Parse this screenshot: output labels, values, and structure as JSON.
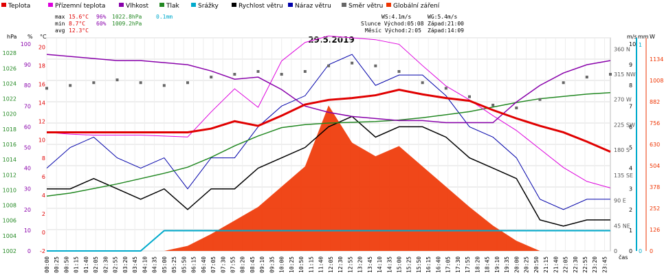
{
  "chart_data": {
    "type": "line",
    "title": "29.5.2019",
    "xlabel": "čas",
    "x_times": [
      "00:00",
      "00:25",
      "00:50",
      "01:15",
      "01:40",
      "02:05",
      "02:30",
      "02:55",
      "03:20",
      "03:45",
      "04:10",
      "04:35",
      "05:00",
      "05:25",
      "05:50",
      "06:15",
      "06:40",
      "07:05",
      "07:30",
      "07:55",
      "08:20",
      "08:45",
      "09:10",
      "09:35",
      "10:00",
      "10:25",
      "10:50",
      "11:15",
      "11:40",
      "12:05",
      "12:30",
      "12:55",
      "13:20",
      "13:45",
      "14:10",
      "14:35",
      "15:00",
      "15:25",
      "15:50",
      "16:15",
      "16:40",
      "17:05",
      "17:30",
      "17:55",
      "18:20",
      "18:45",
      "19:10",
      "19:35",
      "20:00",
      "20:25",
      "20:50",
      "21:15",
      "21:40",
      "22:05",
      "22:30",
      "22:55",
      "23:20",
      "23:45"
    ],
    "legend": [
      {
        "name": "Teplota",
        "color": "#e00000"
      },
      {
        "name": "Přízemní teplota",
        "color": "#dd00dd"
      },
      {
        "name": "Vlhkost",
        "color": "#8800aa"
      },
      {
        "name": "Tlak",
        "color": "#228822"
      },
      {
        "name": "Srážky",
        "color": "#00aacc"
      },
      {
        "name": "Rychlost větru",
        "color": "#000000"
      },
      {
        "name": "Náraz větru",
        "color": "#0000aa"
      },
      {
        "name": "Směr větru",
        "color": "#666666"
      },
      {
        "name": "Globální záření",
        "color": "#ee3300"
      }
    ],
    "stats": {
      "max": {
        "label": "max",
        "temp": "15.6°C",
        "hum": "96%",
        "press": "1022.8hPa",
        "rain": "0.1mm"
      },
      "min": {
        "label": "min",
        "temp": "8.7°C",
        "hum": "60%",
        "press": "1009.2hPa"
      },
      "avg": {
        "label": "avg",
        "temp": "12.3°C"
      }
    },
    "info": {
      "ws": "WS:4.1m/s",
      "wg": "WG:5.4m/s",
      "sun": "Slunce Východ:05:08",
      "sun_set": "Západ:21:00",
      "moon": "Měsíc Východ:2:05",
      "moon_set": "Západ:14:09"
    },
    "axes": {
      "hpa": {
        "unit": "hPa",
        "ticks": [
          1002,
          1004,
          1006,
          1008,
          1010,
          1012,
          1014,
          1016,
          1018,
          1020,
          1022,
          1024,
          1026,
          1028
        ]
      },
      "pct": {
        "unit": "%",
        "ticks": [
          0,
          10,
          20,
          30,
          40,
          50,
          60,
          70,
          80,
          90,
          100
        ]
      },
      "degc": {
        "unit": "°C",
        "ticks": [
          -2,
          0,
          2,
          4,
          6,
          8,
          10,
          12,
          14,
          16,
          18,
          20
        ]
      },
      "dir": {
        "unit": "",
        "ticks": [
          "0",
          "45 NE",
          "90 E",
          "135 SE",
          "180 S",
          "225 SW",
          "270 W",
          "315 NW",
          "360 N"
        ]
      },
      "ms": {
        "unit": "m/s",
        "ticks": [
          0,
          1,
          2,
          3,
          4,
          5,
          6,
          7,
          8,
          9,
          10
        ]
      },
      "mm": {
        "unit": "mm",
        "ticks": [
          0,
          1
        ]
      },
      "w": {
        "unit": "W",
        "ticks": [
          0,
          126,
          252,
          378,
          504,
          630,
          756,
          882,
          1008,
          1134
        ]
      }
    },
    "series_hourly": {
      "hours": [
        0,
        1,
        2,
        3,
        4,
        5,
        6,
        7,
        8,
        9,
        10,
        11,
        12,
        13,
        14,
        15,
        16,
        17,
        18,
        19,
        20,
        21,
        22,
        23,
        24
      ],
      "teplota_c": [
        10.8,
        10.8,
        10.8,
        10.8,
        10.8,
        10.8,
        10.8,
        11.2,
        12.0,
        11.5,
        12.6,
        13.8,
        14.3,
        14.5,
        14.8,
        15.4,
        14.9,
        14.5,
        14.2,
        13.2,
        12.3,
        11.5,
        10.8,
        9.8,
        8.7
      ],
      "prizemni_c": [
        10.8,
        10.6,
        10.5,
        10.5,
        10.5,
        10.4,
        10.3,
        13.0,
        15.5,
        13.5,
        18.5,
        20.5,
        21.2,
        21.0,
        20.8,
        20.3,
        18.0,
        15.8,
        14.3,
        12.6,
        11.0,
        9.0,
        7.0,
        5.5,
        4.8
      ],
      "vlhkost_pct": [
        95,
        94,
        93,
        92,
        92,
        91,
        90,
        87,
        83,
        84,
        78,
        70,
        67,
        65,
        64,
        63,
        63,
        62,
        62,
        62,
        72,
        80,
        86,
        90,
        92
      ],
      "tlak_hpa": [
        1009.2,
        1009.6,
        1010.2,
        1010.8,
        1011.5,
        1012.2,
        1013.0,
        1014.3,
        1015.8,
        1017.1,
        1018.2,
        1018.6,
        1018.8,
        1018.9,
        1019.0,
        1019.2,
        1019.5,
        1019.9,
        1020.3,
        1020.9,
        1021.5,
        1022.0,
        1022.3,
        1022.6,
        1022.8
      ],
      "smer_deg": [
        290,
        295,
        300,
        305,
        300,
        295,
        300,
        310,
        315,
        320,
        315,
        320,
        330,
        335,
        330,
        320,
        300,
        290,
        275,
        260,
        255,
        270,
        300,
        310,
        315
      ],
      "rychlost_ms": [
        3,
        3,
        3.5,
        3,
        2.5,
        3,
        2,
        3,
        3,
        4,
        4.5,
        5,
        6,
        6.5,
        5.5,
        6,
        6,
        5.5,
        4.5,
        4,
        3.5,
        1.5,
        1.2,
        1.5,
        1.5
      ],
      "naraz_ms": [
        4,
        5,
        5.5,
        4.5,
        4,
        4.5,
        3,
        4.5,
        4.5,
        6,
        7,
        7.5,
        9,
        9.5,
        8,
        8.5,
        8.5,
        7.5,
        6,
        5.5,
        4.5,
        2.5,
        2,
        2.5,
        2.5
      ],
      "zareni_w": [
        0,
        0,
        0,
        0,
        0,
        0,
        30,
        100,
        180,
        260,
        380,
        500,
        860,
        640,
        560,
        620,
        500,
        380,
        260,
        150,
        60,
        0,
        0,
        0,
        0
      ],
      "srazky_mm": [
        0,
        0,
        0,
        0,
        0,
        0.1,
        0.1,
        0.1,
        0.1,
        0.1,
        0.1,
        0.1,
        0.1,
        0.1,
        0.1,
        0.1,
        0.1,
        0.1,
        0.1,
        0.1,
        0.1,
        0.1,
        0.1,
        0.1,
        0.1
      ]
    },
    "grid": true
  }
}
